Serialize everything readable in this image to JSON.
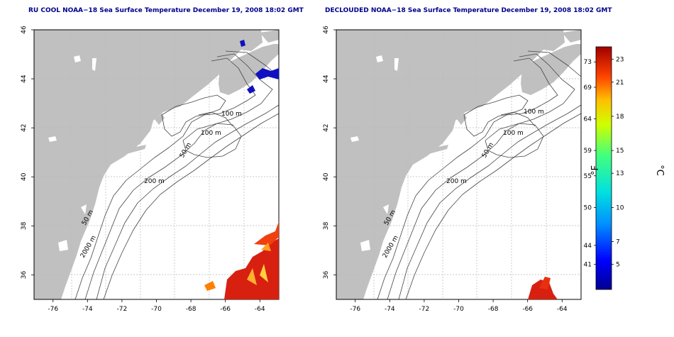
{
  "panels": [
    {
      "id": "left",
      "title": "RU COOL NOAA−18 Sea Surface Temperature December 19, 2008 18:02 GMT",
      "contour_labels": [
        "100 m",
        "100 m",
        "50 m",
        "200 m",
        "50 m",
        "2000 m"
      ]
    },
    {
      "id": "right",
      "title": "DECLOUDED NOAA−18 Sea Surface Temperature December 19, 2008 18:02 GMT",
      "contour_labels": [
        "100 m",
        "100 m",
        "50 m",
        "200 m",
        "50 m",
        "2000 m"
      ]
    }
  ],
  "axes": {
    "x_ticks": [
      "-76",
      "-74",
      "-72",
      "-70",
      "-68",
      "-66",
      "-64"
    ],
    "y_ticks": [
      "46",
      "44",
      "42",
      "40",
      "38",
      "36"
    ],
    "lon_range": [
      -77.1,
      -62.9
    ],
    "lat_range": [
      35.0,
      46.0
    ]
  },
  "colorbar": {
    "f_label": "°F",
    "c_label": "°C",
    "f_ticks": [
      {
        "label": "73",
        "value": 73
      },
      {
        "label": "69",
        "value": 69
      },
      {
        "label": "64",
        "value": 64
      },
      {
        "label": "59",
        "value": 59
      },
      {
        "label": "55",
        "value": 55
      },
      {
        "label": "50",
        "value": 50
      },
      {
        "label": "44",
        "value": 44
      },
      {
        "label": "41",
        "value": 41
      }
    ],
    "c_ticks": [
      {
        "label": "23",
        "value": 23
      },
      {
        "label": "21",
        "value": 21
      },
      {
        "label": "18",
        "value": 18
      },
      {
        "label": "15",
        "value": 15
      },
      {
        "label": "13",
        "value": 13
      },
      {
        "label": "10",
        "value": 10
      },
      {
        "label": "7",
        "value": 7
      },
      {
        "label": "5",
        "value": 5
      }
    ],
    "c_range": [
      2.8,
      24.1
    ]
  },
  "colors": {
    "land": "#c0c0c0",
    "ocean": "#ffffff",
    "contour": "#444444",
    "grid": "#b8b8b8",
    "title": "#00008b",
    "warm_water": "#d82010",
    "cold_water": "#1010c0"
  }
}
